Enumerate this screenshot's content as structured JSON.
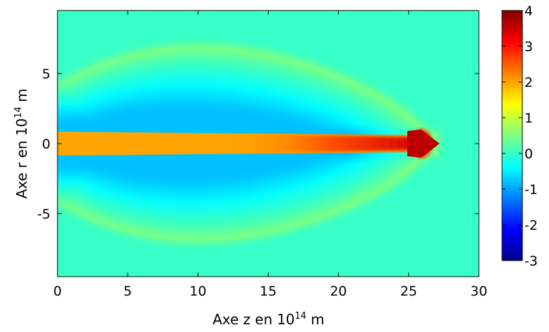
{
  "chart_data": {
    "type": "heatmap",
    "title": "",
    "xlabel": {
      "prefix": "Axe z en 10",
      "exp": "14",
      "suffix": " m"
    },
    "ylabel": {
      "prefix": "Axe r en 10",
      "exp": "14",
      "suffix": " m"
    },
    "xlim": [
      0,
      30
    ],
    "ylim": [
      -9.5,
      9.5
    ],
    "xticks": [
      0,
      5,
      10,
      15,
      20,
      25,
      30
    ],
    "yticks": [
      -5,
      0,
      5
    ],
    "colorbar": {
      "colormap": "jet",
      "range": [
        -3,
        4
      ],
      "ticks": [
        -3,
        -2,
        -1,
        0,
        1,
        2,
        3,
        4
      ]
    },
    "background_value": 0,
    "features": {
      "jet": {
        "z_start": 0,
        "z_tip": 27.2,
        "half_width": 0.85,
        "value_base": 2.0,
        "value_head": 3.6
      },
      "cocoon_outer_edge": {
        "value": 0.5,
        "z_end": 27.2,
        "r_max": 7.9
      },
      "cocoon_interior_min": {
        "value": -0.8,
        "location_z": [
          2,
          9
        ],
        "location_r": 3
      }
    }
  }
}
